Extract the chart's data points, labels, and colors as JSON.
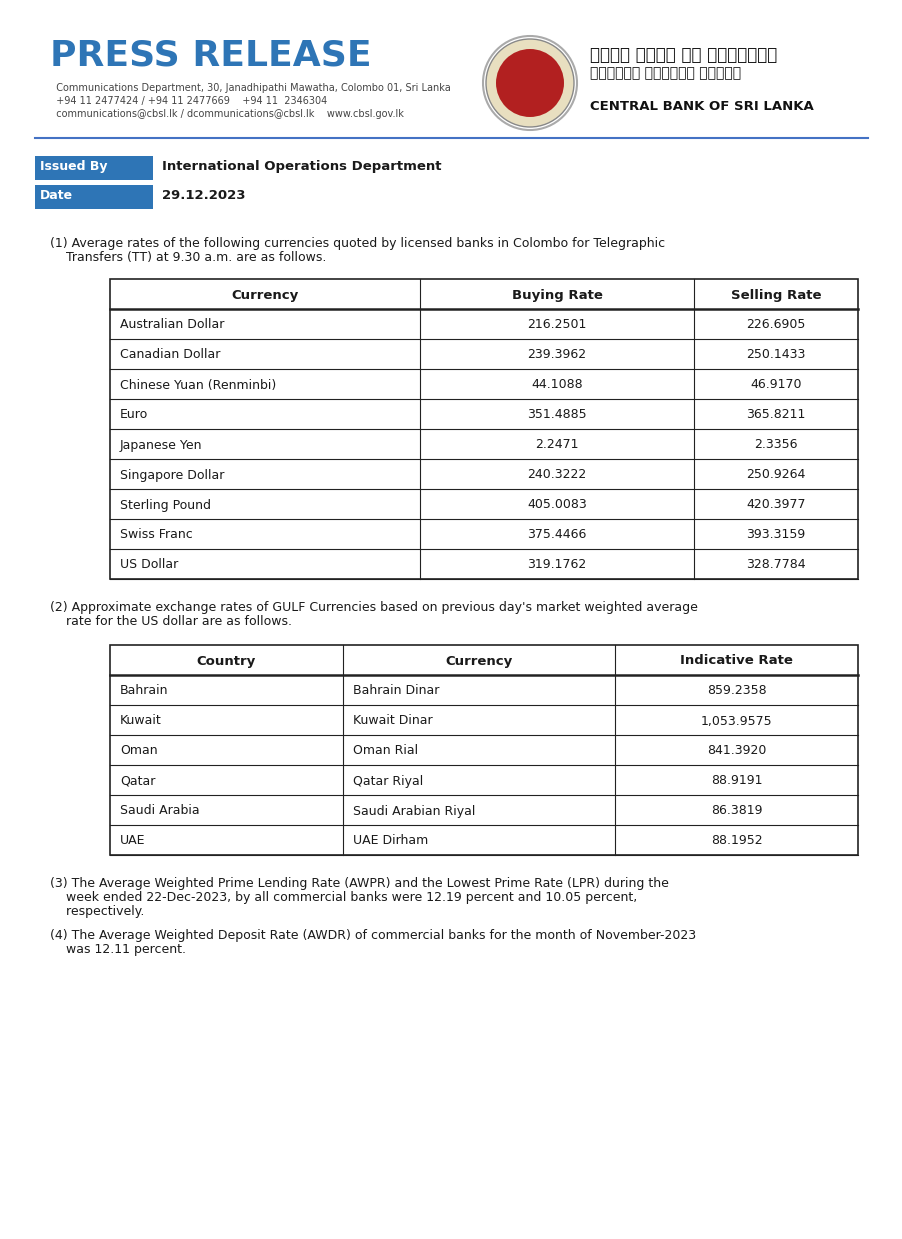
{
  "press_release_text": "PRESS RELEASE",
  "contact_line1": "  Communications Department, 30, Janadhipathi Mawatha, Colombo 01, Sri Lanka",
  "contact_line2": "  +94 11 2477424 / +94 11 2477669    +94 11  2346304",
  "contact_line3": "  communications@cbsl.lk / dcommunications@cbsl.lk    www.cbsl.gov.lk",
  "sinhala_line1": "ශ්‍රී ලංකා මහ ඔේන්කුව",
  "tamil_line1": "இலங்கை மத்திய வங்கி",
  "central_bank": "CENTRAL BANK OF SRI LANKA",
  "issued_by_label": "Issued By",
  "issued_by_value": "International Operations Department",
  "date_label": "Date",
  "date_value": "29.12.2023",
  "note1_line1": "(1) Average rates of the following currencies quoted by licensed banks in Colombo for Telegraphic",
  "note1_line2": "    Transfers (TT) at 9.30 a.m. are as follows.",
  "table1_headers": [
    "Currency",
    "Buying Rate",
    "Selling Rate"
  ],
  "table1_data": [
    [
      "Australian Dollar",
      "216.2501",
      "226.6905"
    ],
    [
      "Canadian Dollar",
      "239.3962",
      "250.1433"
    ],
    [
      "Chinese Yuan (Renminbi)",
      "44.1088",
      "46.9170"
    ],
    [
      "Euro",
      "351.4885",
      "365.8211"
    ],
    [
      "Japanese Yen",
      "2.2471",
      "2.3356"
    ],
    [
      "Singapore Dollar",
      "240.3222",
      "250.9264"
    ],
    [
      "Sterling Pound",
      "405.0083",
      "420.3977"
    ],
    [
      "Swiss Franc",
      "375.4466",
      "393.3159"
    ],
    [
      "US Dollar",
      "319.1762",
      "328.7784"
    ]
  ],
  "note2_line1": "(2) Approximate exchange rates of GULF Currencies based on previous day's market weighted average",
  "note2_line2": "    rate for the US dollar are as follows.",
  "table2_headers": [
    "Country",
    "Currency",
    "Indicative Rate"
  ],
  "table2_data": [
    [
      "Bahrain",
      "Bahrain Dinar",
      "859.2358"
    ],
    [
      "Kuwait",
      "Kuwait Dinar",
      "1,053.9575"
    ],
    [
      "Oman",
      "Oman Rial",
      "841.3920"
    ],
    [
      "Qatar",
      "Qatar Riyal",
      "88.9191"
    ],
    [
      "Saudi Arabia",
      "Saudi Arabian Riyal",
      "86.3819"
    ],
    [
      "UAE",
      "UAE Dirham",
      "88.1952"
    ]
  ],
  "note3_line1": "(3) The Average Weighted Prime Lending Rate (AWPR) and the Lowest Prime Rate (LPR) during the",
  "note3_line2": "    week ended 22-Dec-2023, by all commercial banks were 12.19 percent and 10.05 percent,",
  "note3_line3": "    respectively.",
  "note4_line1": "(4) The Average Weighted Deposit Rate (AWDR) of commercial banks for the month of November-2023",
  "note4_line2": "    was 12.11 percent.",
  "bg_color": "#ffffff",
  "blue_color": "#2e75b6",
  "separator_color": "#4472c4",
  "table_border": "#222222",
  "text_dark": "#1a1a1a"
}
